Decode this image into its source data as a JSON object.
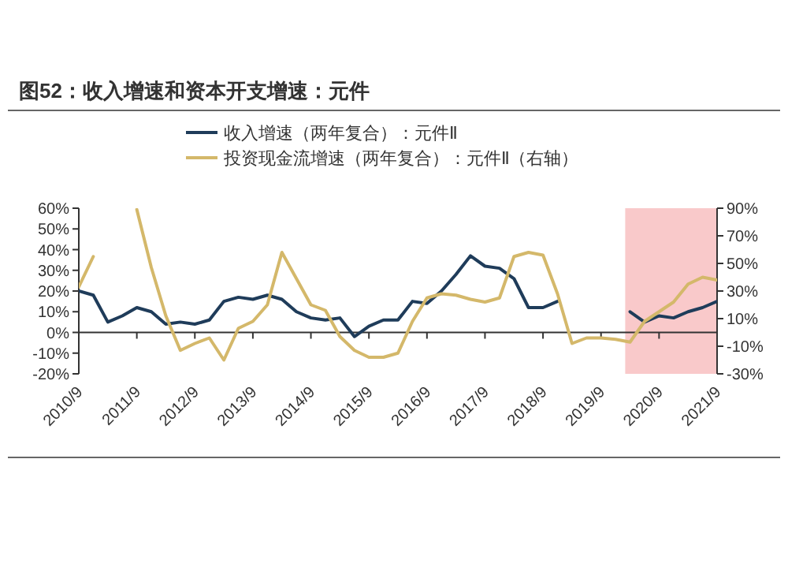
{
  "chart_data": {
    "type": "line",
    "title": "图52：收入增速和资本开支增速：元件",
    "x": [
      "2010-09",
      "2010-12",
      "2011-03",
      "2011-06",
      "2011-09",
      "2011-12",
      "2012-03",
      "2012-06",
      "2012-09",
      "2012-12",
      "2013-03",
      "2013-06",
      "2013-09",
      "2013-12",
      "2014-03",
      "2014-06",
      "2014-09",
      "2014-12",
      "2015-03",
      "2015-06",
      "2015-09",
      "2015-12",
      "2016-03",
      "2016-06",
      "2016-09",
      "2016-12",
      "2017-03",
      "2017-06",
      "2017-09",
      "2017-12",
      "2018-03",
      "2018-06",
      "2018-09",
      "2018-12",
      "2019-03",
      "2019-06",
      "2019-09",
      "2019-12",
      "2020-03",
      "2020-06",
      "2020-09",
      "2020-12",
      "2021-03",
      "2021-06",
      "2021-09"
    ],
    "series": [
      {
        "name": "收入增速（两年复合）：元件Ⅱ",
        "color": "#1f3c5a",
        "values": [
          20,
          18,
          5,
          8,
          12,
          10,
          4,
          5,
          4,
          6,
          15,
          17,
          16,
          18,
          16,
          10,
          7,
          6,
          7,
          -2,
          3,
          6,
          6,
          15,
          14,
          20,
          28,
          37,
          32,
          31,
          26,
          12,
          12,
          15,
          null,
          null,
          null,
          null,
          10,
          5,
          8,
          7,
          10,
          12,
          15
        ]
      },
      {
        "name": "投资现金流增速（两年复合）：元件Ⅱ（右轴）",
        "color": "#d4b86a",
        "axis": "y2",
        "values": [
          33,
          55,
          null,
          null,
          89,
          47,
          12,
          -13,
          -8,
          -4,
          -20,
          3,
          8,
          20,
          58,
          39,
          20,
          16,
          -3,
          -13,
          -18,
          -18,
          -15,
          8,
          25,
          28,
          27,
          24,
          22,
          25,
          55,
          58,
          56,
          28,
          -8,
          -4,
          -4,
          -5,
          -7,
          8,
          15,
          22,
          35,
          40,
          38
        ]
      }
    ],
    "xlim": [
      "2010-09",
      "2021-09"
    ],
    "xticks": [
      {
        "value": "2010-09",
        "label": "2010/9"
      },
      {
        "value": "2011-09",
        "label": "2011/9"
      },
      {
        "value": "2012-09",
        "label": "2012/9"
      },
      {
        "value": "2013-09",
        "label": "2013/9"
      },
      {
        "value": "2014-09",
        "label": "2014/9"
      },
      {
        "value": "2015-09",
        "label": "2015/9"
      },
      {
        "value": "2016-09",
        "label": "2016/9"
      },
      {
        "value": "2017-09",
        "label": "2017/9"
      },
      {
        "value": "2018-09",
        "label": "2018/9"
      },
      {
        "value": "2019-09",
        "label": "2019/9"
      },
      {
        "value": "2020-09",
        "label": "2020/9"
      },
      {
        "value": "2021-09",
        "label": "2021/9"
      }
    ],
    "ylim": [
      -20,
      60
    ],
    "yticks": [
      {
        "value": -20,
        "label": "-20%"
      },
      {
        "value": -10,
        "label": "-10%"
      },
      {
        "value": 0,
        "label": "0%"
      },
      {
        "value": 10,
        "label": "10%"
      },
      {
        "value": 20,
        "label": "20%"
      },
      {
        "value": 30,
        "label": "30%"
      },
      {
        "value": 40,
        "label": "40%"
      },
      {
        "value": 50,
        "label": "50%"
      },
      {
        "value": 60,
        "label": "60%"
      }
    ],
    "y2lim": [
      -30,
      90
    ],
    "y2ticks": [
      {
        "value": -30,
        "label": "-30%"
      },
      {
        "value": -10,
        "label": "-10%"
      },
      {
        "value": 10,
        "label": "10%"
      },
      {
        "value": 30,
        "label": "30%"
      },
      {
        "value": 50,
        "label": "50%"
      },
      {
        "value": 70,
        "label": "70%"
      },
      {
        "value": 90,
        "label": "90%"
      }
    ],
    "bands": [
      {
        "axis": "x",
        "from": "2020-02",
        "to": "2021-09",
        "color": "#f9c9ca"
      }
    ],
    "legend": "top",
    "line_style": "solid",
    "marker": "none"
  }
}
